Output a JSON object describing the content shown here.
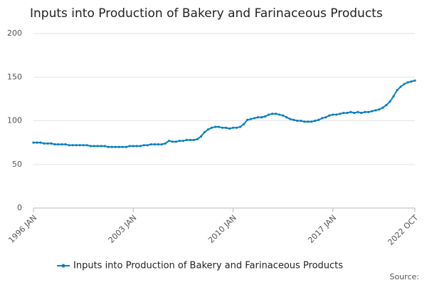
{
  "chart_data": {
    "type": "line",
    "title": "Inputs into Production of Bakery and Farinaceous Products",
    "source": "Source:",
    "categories": [
      "1996 JAN",
      null,
      null,
      null,
      null,
      null,
      null,
      null,
      null,
      null,
      null,
      null,
      null,
      null,
      null,
      null,
      null,
      null,
      null,
      null,
      null,
      null,
      null,
      null,
      null,
      null,
      null,
      null,
      "2003 JAN",
      null,
      null,
      null,
      null,
      null,
      null,
      null,
      null,
      null,
      null,
      null,
      null,
      null,
      null,
      null,
      null,
      null,
      null,
      null,
      null,
      null,
      null,
      null,
      null,
      null,
      null,
      null,
      "2010 JAN",
      null,
      null,
      null,
      null,
      null,
      null,
      null,
      null,
      null,
      null,
      null,
      null,
      null,
      null,
      null,
      null,
      null,
      null,
      null,
      null,
      null,
      null,
      null,
      null,
      null,
      null,
      null,
      "2017 JAN",
      null,
      null,
      null,
      null,
      null,
      null,
      null,
      null,
      null,
      null,
      null,
      null,
      null,
      null,
      null,
      null,
      null,
      null,
      null,
      null,
      null,
      null,
      "2022 OCT"
    ],
    "series": [
      {
        "name": "Inputs into Production of Bakery and Farinaceous Products",
        "color": "#0b7fc1",
        "values": [
          75,
          75,
          75,
          74,
          74,
          74,
          73,
          73,
          73,
          73,
          72,
          72,
          72,
          72,
          72,
          72,
          71,
          71,
          71,
          71,
          71,
          70,
          70,
          70,
          70,
          70,
          70,
          71,
          71,
          71,
          71,
          72,
          72,
          73,
          73,
          73,
          73,
          74,
          77,
          76,
          76,
          77,
          77,
          78,
          78,
          78,
          79,
          82,
          87,
          90,
          92,
          93,
          93,
          92,
          92,
          91,
          92,
          92,
          93,
          96,
          101,
          102,
          103,
          104,
          104,
          105,
          107,
          108,
          108,
          107,
          106,
          104,
          102,
          101,
          100,
          100,
          99,
          99,
          99,
          100,
          101,
          103,
          104,
          106,
          107,
          107,
          108,
          109,
          109,
          110,
          109,
          110,
          109,
          110,
          110,
          111,
          112,
          113,
          115,
          118,
          122,
          128,
          135,
          139,
          142,
          144,
          145,
          146
        ]
      }
    ],
    "ylim": [
      0,
      200
    ],
    "yticks": [
      0,
      50,
      100,
      150,
      200
    ],
    "grid": true,
    "legend": "bottom"
  }
}
